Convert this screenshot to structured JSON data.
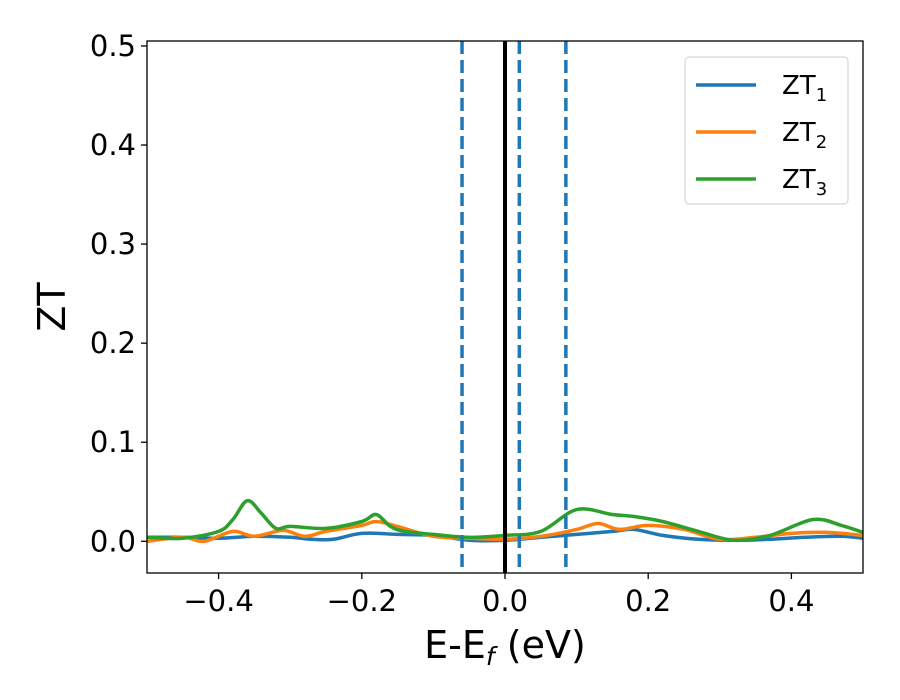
{
  "chart_data": {
    "type": "line",
    "xlabel_main": "E-E",
    "xlabel_sub": "f",
    "xlabel_unit": " (eV)",
    "ylabel": "ZT",
    "xlim": [
      -0.5,
      0.5
    ],
    "ylim": [
      -0.032,
      0.505
    ],
    "xticks": [
      -0.4,
      -0.2,
      0.0,
      0.2,
      0.4
    ],
    "xtick_labels": [
      "−0.4",
      "−0.2",
      "0.0",
      "0.2",
      "0.4"
    ],
    "yticks": [
      0.0,
      0.1,
      0.2,
      0.3,
      0.4,
      0.5
    ],
    "ytick_labels": [
      "0.0",
      "0.1",
      "0.2",
      "0.3",
      "0.4",
      "0.5"
    ],
    "grid": false,
    "legend_position": "top-right",
    "vlines": [
      {
        "x": -0.06,
        "style": "dashed",
        "color": "#1f77b4"
      },
      {
        "x": 0.0,
        "style": "solid",
        "color": "#000000"
      },
      {
        "x": 0.02,
        "style": "dashed",
        "color": "#1f77b4"
      },
      {
        "x": 0.085,
        "style": "dashed",
        "color": "#1f77b4"
      }
    ],
    "series": [
      {
        "name": "ZT",
        "subscript": "1",
        "color": "#1f77b4",
        "x": [
          -0.5,
          -0.45,
          -0.4,
          -0.35,
          -0.3,
          -0.27,
          -0.24,
          -0.2,
          -0.15,
          -0.1,
          -0.05,
          0.0,
          0.05,
          0.1,
          0.15,
          0.18,
          0.22,
          0.27,
          0.32,
          0.37,
          0.42,
          0.47,
          0.5
        ],
        "y": [
          0.004,
          0.004,
          0.003,
          0.005,
          0.004,
          0.002,
          0.002,
          0.008,
          0.007,
          0.006,
          0.001,
          0.001,
          0.004,
          0.007,
          0.01,
          0.012,
          0.006,
          0.002,
          0.001,
          0.002,
          0.004,
          0.005,
          0.003
        ]
      },
      {
        "name": "ZT",
        "subscript": "2",
        "color": "#ff7f0e",
        "x": [
          -0.5,
          -0.45,
          -0.42,
          -0.38,
          -0.35,
          -0.31,
          -0.28,
          -0.25,
          -0.2,
          -0.18,
          -0.15,
          -0.1,
          -0.05,
          0.0,
          0.05,
          0.1,
          0.13,
          0.16,
          0.2,
          0.25,
          0.3,
          0.35,
          0.4,
          0.45,
          0.5
        ],
        "y": [
          0.0,
          0.004,
          0.0,
          0.01,
          0.005,
          0.011,
          0.005,
          0.01,
          0.016,
          0.02,
          0.015,
          0.005,
          0.003,
          0.002,
          0.005,
          0.012,
          0.018,
          0.012,
          0.016,
          0.012,
          0.002,
          0.004,
          0.008,
          0.009,
          0.006
        ]
      },
      {
        "name": "ZT",
        "subscript": "3",
        "color": "#2ca02c",
        "x": [
          -0.5,
          -0.45,
          -0.4,
          -0.38,
          -0.36,
          -0.34,
          -0.32,
          -0.3,
          -0.25,
          -0.2,
          -0.18,
          -0.16,
          -0.14,
          -0.1,
          -0.05,
          0.0,
          0.05,
          0.1,
          0.15,
          0.18,
          0.22,
          0.27,
          0.32,
          0.37,
          0.43,
          0.47,
          0.5
        ],
        "y": [
          0.004,
          0.003,
          0.01,
          0.022,
          0.041,
          0.028,
          0.013,
          0.015,
          0.013,
          0.02,
          0.027,
          0.015,
          0.01,
          0.007,
          0.004,
          0.006,
          0.01,
          0.032,
          0.027,
          0.025,
          0.02,
          0.01,
          0.001,
          0.006,
          0.022,
          0.016,
          0.009
        ]
      }
    ]
  }
}
